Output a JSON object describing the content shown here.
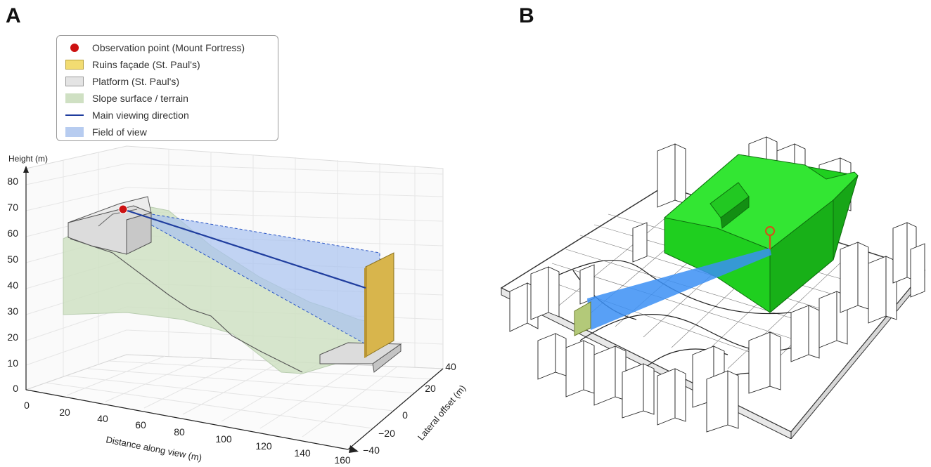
{
  "panels": {
    "a_label": "A",
    "b_label": "B"
  },
  "legend": {
    "items": [
      {
        "label": "Observation point (Mount Fortress)",
        "kind": "dot",
        "color": "#cc1111"
      },
      {
        "label": "Ruins façade (St. Paul's)",
        "kind": "box",
        "color": "#f2dc72",
        "border": "#b9a23a"
      },
      {
        "label": "Platform (St. Paul's)",
        "kind": "box",
        "color": "#e4e4e4",
        "border": "#9a9a9a"
      },
      {
        "label": "Slope surface / terrain",
        "kind": "box",
        "color": "#cfe0c3",
        "border": "#cfe0c3"
      },
      {
        "label": "Main viewing direction",
        "kind": "line",
        "color": "#1f3d9e"
      },
      {
        "label": "Field of view",
        "kind": "box",
        "color": "#b7ccf0",
        "border": "#b7ccf0"
      }
    ]
  },
  "axes": {
    "z_label": "Height (m)",
    "x_label": "Distance along view (m)",
    "y_label": "Lateral offset (m)",
    "z_ticks": [
      "0",
      "10",
      "20",
      "30",
      "40",
      "50",
      "60",
      "70",
      "80"
    ],
    "x_ticks": [
      "0",
      "20",
      "40",
      "60",
      "80",
      "100",
      "120",
      "140",
      "160"
    ],
    "y_ticks": [
      "40",
      "20",
      "0",
      "−20",
      "−40"
    ]
  },
  "scene": {
    "observation_height": 69,
    "facade_distance": 150,
    "facade_color": "#d8b54c",
    "terrain_color": "#cfe0c3",
    "fov_color": "#b7ccf0",
    "view_line_color": "#1f3d9e",
    "marker_color": "#cc1111",
    "panel_b_highlight": "#22dd22",
    "panel_b_beam": "#3b8ff5",
    "panel_b_marker": "#d0531a"
  }
}
